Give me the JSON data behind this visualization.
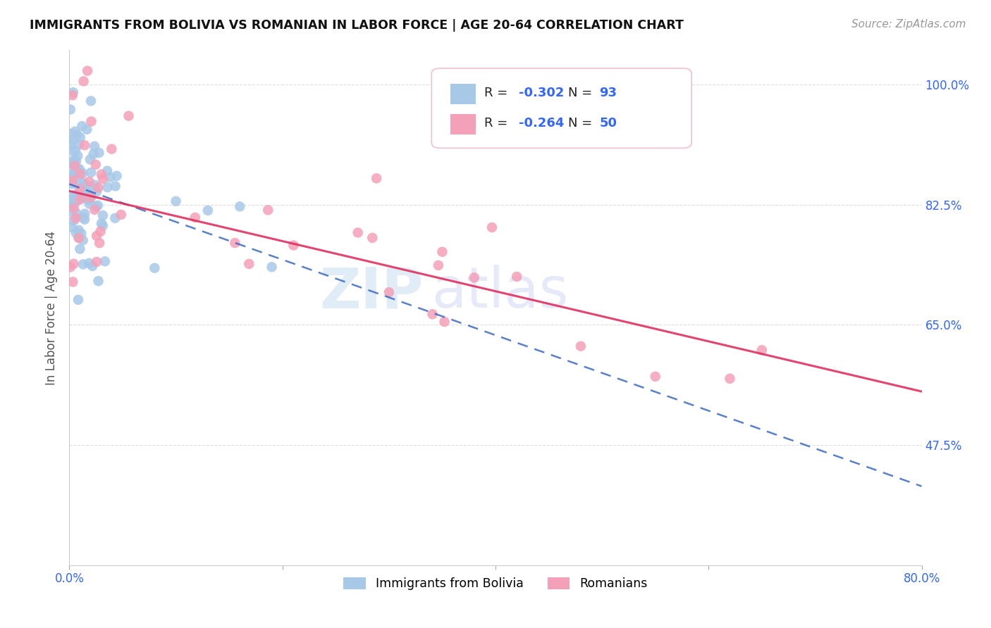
{
  "title": "IMMIGRANTS FROM BOLIVIA VS ROMANIAN IN LABOR FORCE | AGE 20-64 CORRELATION CHART",
  "source": "Source: ZipAtlas.com",
  "ylabel": "In Labor Force | Age 20-64",
  "xlim": [
    0.0,
    0.8
  ],
  "ylim": [
    0.3,
    1.05
  ],
  "xtick_positions": [
    0.0,
    0.2,
    0.4,
    0.6,
    0.8
  ],
  "xtick_labels": [
    "0.0%",
    "",
    "",
    "",
    "80.0%"
  ],
  "ytick_labels": [
    "100.0%",
    "82.5%",
    "65.0%",
    "47.5%"
  ],
  "ytick_values": [
    1.0,
    0.825,
    0.65,
    0.475
  ],
  "bolivia_color": "#a8c8e8",
  "romanian_color": "#f4a0b8",
  "bolivia_trend_color": "#3060c0",
  "romanian_trend_color": "#e03060",
  "R_bolivia": -0.302,
  "N_bolivia": 93,
  "R_romanian": -0.264,
  "N_romanian": 50,
  "legend_label_bolivia": "Immigrants from Bolivia",
  "legend_label_romanian": "Romanians",
  "background_color": "#ffffff",
  "boli_slope": -0.55,
  "boli_intercept": 0.855,
  "rom_slope": -0.365,
  "rom_intercept": 0.845,
  "watermark_zip_color": "#c8dff0",
  "watermark_atlas_color": "#c8d0f0",
  "grid_color": "#dddddd",
  "tick_label_color": "#3366ff",
  "title_color": "#111111",
  "source_color": "#999999",
  "ylabel_color": "#555555"
}
